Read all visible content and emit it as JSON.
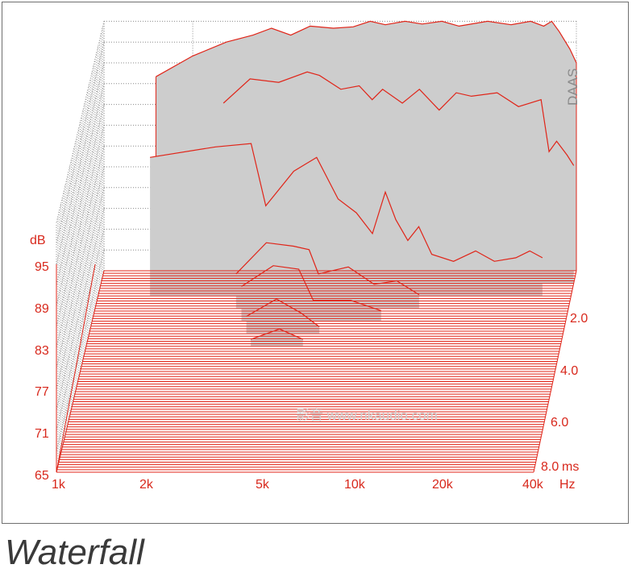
{
  "caption": "Waterfall",
  "brand": "DAAS",
  "watermark": "影音 www.nkaudio.com",
  "chart_data": {
    "type": "waterfall",
    "title": "",
    "x_unit": "Hz",
    "y_unit": "dB",
    "z_unit": "ms",
    "x_scale": "log",
    "x_ticks": [
      "1k",
      "2k",
      "5k",
      "10k",
      "20k",
      "40k"
    ],
    "x_tick_values": [
      1000,
      2000,
      5000,
      10000,
      20000,
      40000
    ],
    "y_ticks": [
      "95",
      "89",
      "83",
      "77",
      "71",
      "65"
    ],
    "y_tick_values": [
      95,
      89,
      83,
      77,
      71,
      65
    ],
    "z_ticks": [
      "2.0",
      "4.0",
      "6.0",
      "8.0"
    ],
    "z_tick_values": [
      2.0,
      4.0,
      6.0,
      8.0
    ],
    "ylim": [
      65,
      101
    ],
    "zlim": [
      0,
      8.0
    ],
    "xlim": [
      1000,
      40000
    ],
    "grid": true,
    "colors": {
      "curve": "#e02418",
      "fill": "#cdcdcd",
      "grid": "#8c8c8c",
      "labels": "#d8281c"
    },
    "slices": [
      {
        "t": 0.0,
        "points": [
          [
            1500,
            93.0
          ],
          [
            2000,
            96.0
          ],
          [
            2600,
            98.0
          ],
          [
            3200,
            99.0
          ],
          [
            3700,
            100.0
          ],
          [
            4300,
            99.0
          ],
          [
            5000,
            100.3
          ],
          [
            6000,
            100.0
          ],
          [
            7000,
            100.2
          ],
          [
            8000,
            101.0
          ],
          [
            9000,
            100.5
          ],
          [
            10500,
            101.0
          ],
          [
            12000,
            100.6
          ],
          [
            14000,
            101.0
          ],
          [
            16000,
            100.3
          ],
          [
            20000,
            101.0
          ],
          [
            24000,
            100.5
          ],
          [
            28000,
            101.0
          ],
          [
            31000,
            100.3
          ],
          [
            33000,
            101.0
          ],
          [
            35000,
            99.5
          ],
          [
            38000,
            97.0
          ],
          [
            40000,
            95.0
          ]
        ]
      },
      {
        "t": 0.5,
        "points": [
          [
            2600,
            91.0
          ],
          [
            3200,
            94.5
          ],
          [
            4000,
            94.0
          ],
          [
            5000,
            95.5
          ],
          [
            5500,
            95.0
          ],
          [
            6500,
            93.0
          ],
          [
            7500,
            93.5
          ],
          [
            8300,
            91.5
          ],
          [
            9000,
            93.0
          ],
          [
            10500,
            91.0
          ],
          [
            12000,
            93.0
          ],
          [
            14000,
            90.0
          ],
          [
            16000,
            92.5
          ],
          [
            18000,
            92.0
          ],
          [
            22000,
            92.5
          ],
          [
            26000,
            90.5
          ],
          [
            31000,
            91.5
          ],
          [
            33000,
            84.0
          ],
          [
            35000,
            85.5
          ],
          [
            38000,
            83.5
          ],
          [
            40000,
            82.0
          ]
        ]
      },
      {
        "t": 1.0,
        "points": [
          [
            1500,
            85.0
          ],
          [
            2500,
            86.5
          ],
          [
            3300,
            87.0
          ],
          [
            3700,
            78.0
          ],
          [
            4600,
            83.0
          ],
          [
            5500,
            85.0
          ],
          [
            6500,
            79.0
          ],
          [
            7500,
            77.0
          ],
          [
            8500,
            74.0
          ],
          [
            9400,
            80.0
          ],
          [
            10200,
            76.0
          ],
          [
            11200,
            73.0
          ],
          [
            12200,
            75.0
          ],
          [
            13500,
            71.0
          ],
          [
            16000,
            70.0
          ],
          [
            19000,
            71.5
          ],
          [
            22000,
            70.0
          ],
          [
            26000,
            70.5
          ],
          [
            29000,
            71.5
          ],
          [
            32000,
            70.5
          ]
        ]
      },
      {
        "t": 1.5,
        "points": [
          [
            3000,
            70.0
          ],
          [
            3800,
            74.5
          ],
          [
            4700,
            74.0
          ],
          [
            5300,
            73.5
          ],
          [
            5700,
            70.0
          ],
          [
            7200,
            71.0
          ],
          [
            8800,
            68.5
          ],
          [
            10500,
            69.0
          ],
          [
            12500,
            67.0
          ]
        ]
      },
      {
        "t": 2.0,
        "points": [
          [
            3200,
            70.0
          ],
          [
            4100,
            73.0
          ],
          [
            5000,
            72.5
          ],
          [
            5600,
            68.0
          ],
          [
            7500,
            68.0
          ],
          [
            9500,
            66.5
          ]
        ]
      },
      {
        "t": 2.5,
        "points": [
          [
            3400,
            67.5
          ],
          [
            4300,
            70.0
          ],
          [
            5200,
            68.0
          ],
          [
            6000,
            66.0
          ]
        ]
      },
      {
        "t": 3.0,
        "points": [
          [
            3600,
            66.0
          ],
          [
            4500,
            67.5
          ],
          [
            5400,
            66.0
          ]
        ]
      }
    ]
  }
}
